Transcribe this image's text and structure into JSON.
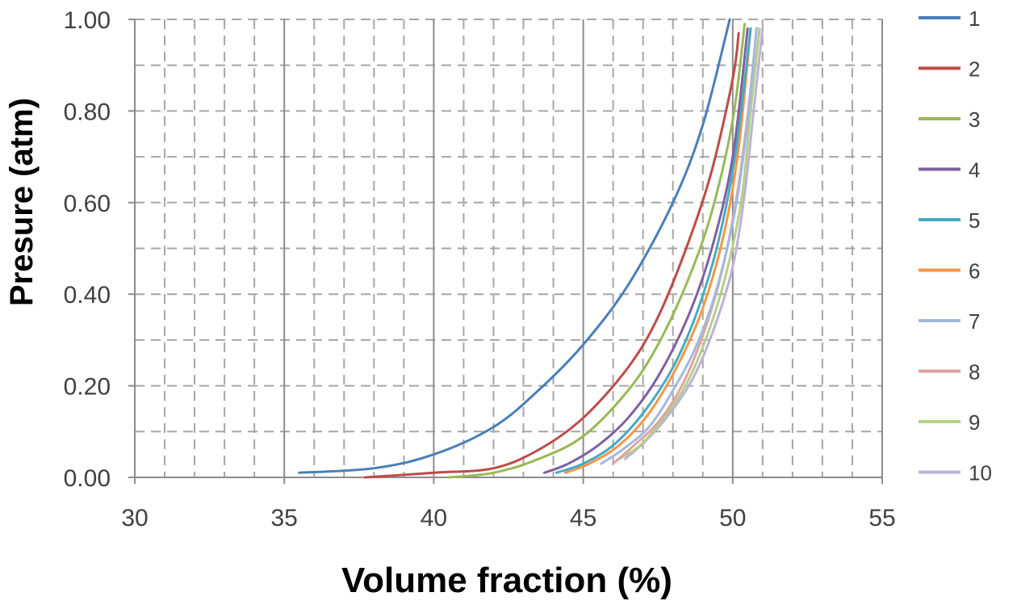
{
  "chart_data": {
    "type": "line",
    "xlabel": "Volume fraction (%)",
    "ylabel": "Presure (atm)",
    "xlim": [
      30,
      55
    ],
    "ylim": [
      0,
      1
    ],
    "x_ticks": [
      "30",
      "35",
      "40",
      "45",
      "50",
      "55"
    ],
    "y_ticks": [
      "0.00",
      "0.20",
      "0.40",
      "0.60",
      "0.80",
      "1.00"
    ],
    "grid": "major solid vertical, minor dashed",
    "legend": "right",
    "series": [
      {
        "name": "1",
        "color": "#4a7ebb",
        "x": [
          35.5,
          38.0,
          40.0,
          42.0,
          43.5,
          45.0,
          46.5,
          48.0,
          49.0,
          49.9
        ],
        "y": [
          0.01,
          0.02,
          0.05,
          0.11,
          0.19,
          0.29,
          0.42,
          0.6,
          0.77,
          1.0
        ]
      },
      {
        "name": "2",
        "color": "#be4b48",
        "x": [
          37.7,
          40.0,
          42.0,
          43.5,
          45.0,
          46.5,
          47.5,
          48.5,
          49.3,
          50.0,
          50.2
        ],
        "y": [
          0.0,
          0.01,
          0.02,
          0.06,
          0.13,
          0.24,
          0.35,
          0.51,
          0.67,
          0.87,
          0.97
        ]
      },
      {
        "name": "3",
        "color": "#98b954",
        "x": [
          40.5,
          42.0,
          43.5,
          45.0,
          46.5,
          47.5,
          48.5,
          49.3,
          50.0,
          50.4
        ],
        "y": [
          0.0,
          0.01,
          0.04,
          0.09,
          0.19,
          0.29,
          0.43,
          0.58,
          0.78,
          0.99
        ]
      },
      {
        "name": "4",
        "color": "#7d60a0",
        "x": [
          43.7,
          44.5,
          45.5,
          46.5,
          47.5,
          48.5,
          49.3,
          50.0,
          50.5
        ],
        "y": [
          0.01,
          0.03,
          0.07,
          0.13,
          0.22,
          0.35,
          0.5,
          0.7,
          0.98
        ]
      },
      {
        "name": "5",
        "color": "#46aac5",
        "x": [
          44.1,
          45.0,
          46.0,
          47.0,
          48.0,
          48.8,
          49.5,
          50.1,
          50.6
        ],
        "y": [
          0.01,
          0.03,
          0.07,
          0.14,
          0.24,
          0.36,
          0.51,
          0.71,
          0.98
        ]
      },
      {
        "name": "6",
        "color": "#f79646",
        "x": [
          44.4,
          45.2,
          46.2,
          47.2,
          48.2,
          49.0,
          49.7,
          50.2,
          50.6
        ],
        "y": [
          0.01,
          0.03,
          0.07,
          0.14,
          0.25,
          0.37,
          0.53,
          0.72,
          0.98
        ]
      },
      {
        "name": "7",
        "color": "#a3b8dd",
        "x": [
          45.6,
          46.3,
          47.2,
          48.0,
          48.8,
          49.5,
          50.1,
          50.5,
          50.8
        ],
        "y": [
          0.03,
          0.06,
          0.11,
          0.19,
          0.29,
          0.42,
          0.59,
          0.78,
          0.98
        ]
      },
      {
        "name": "8",
        "color": "#e0a3a1",
        "x": [
          46.0,
          46.7,
          47.5,
          48.3,
          49.0,
          49.6,
          50.1,
          50.5,
          50.8
        ],
        "y": [
          0.03,
          0.07,
          0.12,
          0.2,
          0.31,
          0.44,
          0.6,
          0.79,
          0.98
        ]
      },
      {
        "name": "9",
        "color": "#b3d089",
        "x": [
          46.2,
          46.9,
          47.7,
          48.5,
          49.2,
          49.8,
          50.3,
          50.6,
          50.9
        ],
        "y": [
          0.04,
          0.07,
          0.13,
          0.21,
          0.32,
          0.45,
          0.61,
          0.8,
          0.98
        ]
      },
      {
        "name": "10",
        "color": "#bfb0d5",
        "x": [
          46.4,
          47.1,
          47.9,
          48.7,
          49.4,
          50.0,
          50.4,
          50.7,
          51.0
        ],
        "y": [
          0.04,
          0.08,
          0.14,
          0.22,
          0.33,
          0.46,
          0.62,
          0.8,
          0.98
        ]
      }
    ]
  }
}
